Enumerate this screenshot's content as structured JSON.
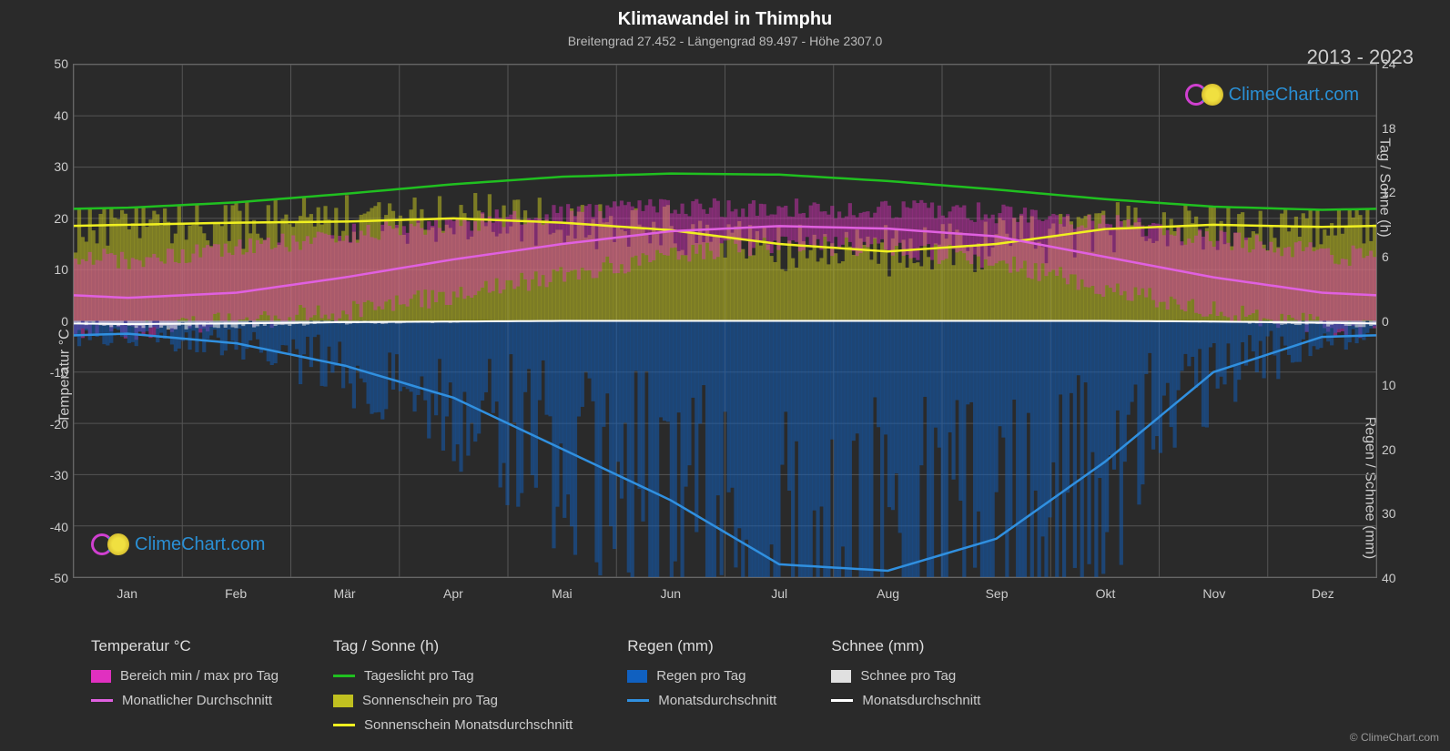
{
  "title": "Klimawandel in Thimphu",
  "subtitle": "Breitengrad 27.452 - Längengrad 89.497 - Höhe 2307.0",
  "year_range": "2013 - 2023",
  "watermark_text": "ClimeChart.com",
  "copyright": "© ClimeChart.com",
  "chart": {
    "type": "climate-multiaxis",
    "background_color": "#2a2a2a",
    "grid_color": "#555555",
    "text_color": "#cccccc",
    "plot_border_color": "#666666",
    "left_axis": {
      "label": "Temperatur °C",
      "min": -50,
      "max": 50,
      "step": 10,
      "ticks": [
        -50,
        -40,
        -30,
        -20,
        -10,
        0,
        10,
        20,
        30,
        40,
        50
      ]
    },
    "right_axis_top": {
      "label": "Tag / Sonne (h)",
      "min": 0,
      "max": 24,
      "step": 6,
      "ticks": [
        0,
        6,
        12,
        18,
        24
      ]
    },
    "right_axis_bottom": {
      "label": "Regen / Schnee (mm)",
      "min_display": 0,
      "max_display": 40,
      "step": 10,
      "ticks": [
        0,
        10,
        20,
        30,
        40
      ]
    },
    "months": [
      "Jan",
      "Feb",
      "Mär",
      "Apr",
      "Mai",
      "Jun",
      "Jul",
      "Aug",
      "Sep",
      "Okt",
      "Nov",
      "Dez"
    ],
    "series": {
      "daylight": {
        "label": "Tageslicht pro Tag",
        "color": "#20c020",
        "width": 2.5,
        "values_h": [
          10.6,
          11.1,
          11.9,
          12.8,
          13.5,
          13.8,
          13.7,
          13.1,
          12.3,
          11.4,
          10.7,
          10.4
        ]
      },
      "sunshine_avg": {
        "label": "Sonnenschein Monatsdurchschnitt",
        "color": "#f0f020",
        "width": 2.5,
        "values_h": [
          9.0,
          9.2,
          9.3,
          9.6,
          9.2,
          8.5,
          7.2,
          6.5,
          7.2,
          8.6,
          9.0,
          8.8
        ]
      },
      "temp_avg": {
        "label": "Monatlicher Durchschnitt",
        "color": "#e060e0",
        "width": 2.5,
        "values_c": [
          4.5,
          5.5,
          8.5,
          12.0,
          15.0,
          17.5,
          18.5,
          18.0,
          16.5,
          12.5,
          8.5,
          5.5
        ]
      },
      "rain_avg": {
        "label": "Monatsdurchschnitt",
        "color": "#3090e0",
        "width": 2.5,
        "values_mm": [
          2.0,
          3.5,
          7.0,
          12.0,
          20.0,
          28.0,
          38.0,
          39.0,
          34.0,
          22.0,
          8.0,
          2.5
        ]
      },
      "snow_avg": {
        "label": "Monatsdurchschnitt",
        "color": "#ffffff",
        "width": 2,
        "values_mm": [
          0.5,
          0.4,
          0.2,
          0.1,
          0,
          0,
          0,
          0,
          0,
          0,
          0.1,
          0.3
        ]
      },
      "temp_range": {
        "label": "Bereich min / max pro Tag",
        "color": "#e030c0",
        "min_c": [
          -2,
          0,
          2,
          5,
          9,
          13,
          15,
          14,
          12,
          6,
          2,
          -1
        ],
        "max_c": [
          12,
          14,
          17,
          19,
          21,
          22,
          22,
          22,
          21,
          19,
          16,
          13
        ]
      },
      "sunshine_daily": {
        "label": "Sonnenschein pro Tag",
        "color": "#c0c020"
      },
      "rain_daily": {
        "label": "Regen pro Tag",
        "color": "#1060c0"
      },
      "snow_daily": {
        "label": "Schnee pro Tag",
        "color": "#e0e0e0"
      }
    }
  },
  "legend": {
    "groups": [
      {
        "header": "Temperatur °C",
        "items": [
          {
            "type": "swatch",
            "color": "#e030c0",
            "label": "Bereich min / max pro Tag"
          },
          {
            "type": "line",
            "color": "#e060e0",
            "label": "Monatlicher Durchschnitt"
          }
        ]
      },
      {
        "header": "Tag / Sonne (h)",
        "items": [
          {
            "type": "line",
            "color": "#20c020",
            "label": "Tageslicht pro Tag"
          },
          {
            "type": "swatch",
            "color": "#c0c020",
            "label": "Sonnenschein pro Tag"
          },
          {
            "type": "line",
            "color": "#f0f020",
            "label": "Sonnenschein Monatsdurchschnitt"
          }
        ]
      },
      {
        "header": "Regen (mm)",
        "items": [
          {
            "type": "swatch",
            "color": "#1060c0",
            "label": "Regen pro Tag"
          },
          {
            "type": "line",
            "color": "#3090e0",
            "label": "Monatsdurchschnitt"
          }
        ]
      },
      {
        "header": "Schnee (mm)",
        "items": [
          {
            "type": "swatch",
            "color": "#e0e0e0",
            "label": "Schnee pro Tag"
          },
          {
            "type": "line",
            "color": "#ffffff",
            "label": "Monatsdurchschnitt"
          }
        ]
      }
    ]
  }
}
